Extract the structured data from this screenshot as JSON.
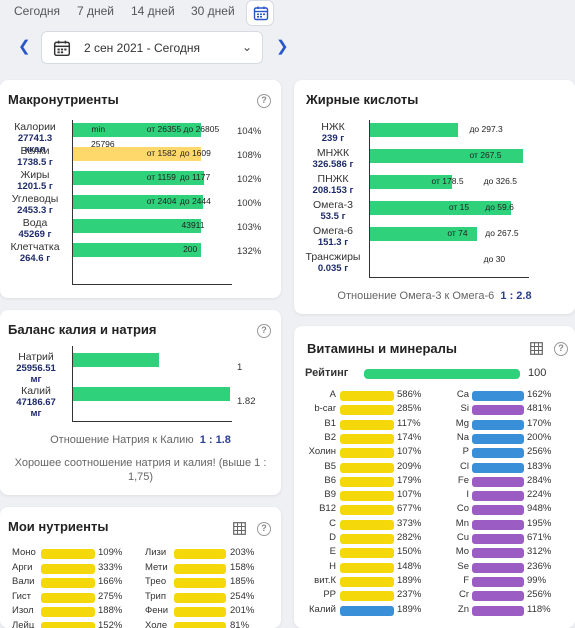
{
  "tabs": [
    {
      "label": "Сегодня"
    },
    {
      "label": "7 дней"
    },
    {
      "label": "14 дней"
    },
    {
      "label": "30 дней"
    }
  ],
  "date_range": "2 сен 2021 - Сегодня",
  "colors": {
    "green": "#2fd17b",
    "yellow": "#f5d80a",
    "blue": "#3a8fd9",
    "purple": "#9b5cc4",
    "light_yellow": "#ffd86b"
  },
  "macro": {
    "title": "Макронутриенты",
    "rows": [
      {
        "name": "Калории",
        "amount": "27741.3",
        "unit": "ккал",
        "fill": 0.81,
        "color": "green",
        "inner": [
          {
            "text": "min",
            "pos": 0.18
          },
          {
            "text": "от 26355 до 26805",
            "pos": 0.53
          }
        ],
        "below": "25796",
        "pct": "104%"
      },
      {
        "name": "Белки",
        "amount": "1738.5 г",
        "unit": "",
        "fill": 0.81,
        "color": "yellow",
        "inner": [
          {
            "text": "от 1582",
            "pos": 0.53
          },
          {
            "text": "до 1609",
            "pos": 0.74
          }
        ],
        "below": "",
        "pct": "108%"
      },
      {
        "name": "Жиры",
        "amount": "1201.5 г",
        "unit": "",
        "fill": 0.83,
        "color": "green",
        "inner": [
          {
            "text": "от 1159",
            "pos": 0.53
          },
          {
            "text": "до 1177",
            "pos": 0.74
          }
        ],
        "below": "",
        "pct": "102%"
      },
      {
        "name": "Углеводы",
        "amount": "2453.3 г",
        "unit": "",
        "fill": 0.82,
        "color": "green",
        "inner": [
          {
            "text": "от 2404",
            "pos": 0.53
          },
          {
            "text": "до 2444",
            "pos": 0.74
          }
        ],
        "below": "",
        "pct": "100%"
      },
      {
        "name": "Вода",
        "amount": "45269 г",
        "unit": "",
        "fill": 0.81,
        "color": "green",
        "inner": [
          {
            "text": "43911",
            "pos": 0.75
          }
        ],
        "below": "",
        "pct": "103%"
      },
      {
        "name": "Клетчатка",
        "amount": "264.6 г",
        "unit": "",
        "fill": 0.81,
        "color": "green",
        "inner": [
          {
            "text": "200",
            "pos": 0.76
          }
        ],
        "below": "",
        "pct": "132%"
      }
    ]
  },
  "fatty": {
    "title": "Жирные кислоты",
    "rows": [
      {
        "name": "НЖК",
        "amount": "239 г",
        "fill": 0.56,
        "inner": [
          {
            "text": "до 297.3",
            "pos": 0.68
          }
        ]
      },
      {
        "name": "МНЖК",
        "amount": "326.586 г",
        "fill": 0.97,
        "inner": [
          {
            "text": "от 267.5",
            "pos": 0.68
          }
        ]
      },
      {
        "name": "ПНЖК",
        "amount": "208.153 г",
        "fill": 0.52,
        "inner": [
          {
            "text": "от 178.5",
            "pos": 0.44
          },
          {
            "text": "до 326.5",
            "pos": 0.77
          }
        ]
      },
      {
        "name": "Омега-3",
        "amount": "53.5 г",
        "fill": 0.89,
        "inner": [
          {
            "text": "от 15",
            "pos": 0.55
          },
          {
            "text": "до 59.6",
            "pos": 0.78
          }
        ]
      },
      {
        "name": "Омега-6",
        "amount": "151.3 г",
        "fill": 0.68,
        "inner": [
          {
            "text": "от 74",
            "pos": 0.54
          },
          {
            "text": "до 267.5",
            "pos": 0.78
          }
        ]
      },
      {
        "name": "Трансжиры",
        "amount": "0.035 г",
        "fill": 0.0,
        "inner": [
          {
            "text": "до 30",
            "pos": 0.77
          }
        ]
      }
    ],
    "ratio_label": "Отношение Омега-3 к Омега-6",
    "ratio_value": "1 : 2.8"
  },
  "balance": {
    "title": "Баланс калия и натрия",
    "rows": [
      {
        "name": "Натрий",
        "amount": "25956.51",
        "unit": "мг",
        "fill": 0.55,
        "value": "1"
      },
      {
        "name": "Калий",
        "amount": "47186.67",
        "unit": "мг",
        "fill": 1.0,
        "value": "1.82"
      }
    ],
    "ratio_label": "Отношение Натрия к Калию",
    "ratio_value": "1 : 1.8",
    "note": "Хорошее соотношение натрия и калия! (выше 1 : 1,75)"
  },
  "vitamins": {
    "title": "Витамины и минералы",
    "rating_label": "Рейтинг",
    "rating_value": "100",
    "rating_fill": 1.0,
    "left": [
      {
        "name": "A",
        "value": "586%",
        "color": "yellow"
      },
      {
        "name": "b-car",
        "value": "285%",
        "color": "yellow"
      },
      {
        "name": "B1",
        "value": "117%",
        "color": "yellow"
      },
      {
        "name": "B2",
        "value": "174%",
        "color": "yellow"
      },
      {
        "name": "Холин",
        "value": "107%",
        "color": "yellow"
      },
      {
        "name": "B5",
        "value": "209%",
        "color": "yellow"
      },
      {
        "name": "B6",
        "value": "179%",
        "color": "yellow"
      },
      {
        "name": "B9",
        "value": "107%",
        "color": "yellow"
      },
      {
        "name": "B12",
        "value": "677%",
        "color": "yellow"
      },
      {
        "name": "C",
        "value": "373%",
        "color": "yellow"
      },
      {
        "name": "D",
        "value": "282%",
        "color": "yellow"
      },
      {
        "name": "E",
        "value": "150%",
        "color": "yellow"
      },
      {
        "name": "H",
        "value": "148%",
        "color": "yellow"
      },
      {
        "name": "вит.К",
        "value": "189%",
        "color": "yellow"
      },
      {
        "name": "PP",
        "value": "237%",
        "color": "yellow"
      },
      {
        "name": "Калий",
        "value": "189%",
        "color": "blue"
      }
    ],
    "right": [
      {
        "name": "Ca",
        "value": "162%",
        "color": "blue"
      },
      {
        "name": "Si",
        "value": "481%",
        "color": "purple"
      },
      {
        "name": "Mg",
        "value": "170%",
        "color": "blue"
      },
      {
        "name": "Na",
        "value": "200%",
        "color": "blue"
      },
      {
        "name": "P",
        "value": "256%",
        "color": "blue"
      },
      {
        "name": "Cl",
        "value": "183%",
        "color": "blue"
      },
      {
        "name": "Fe",
        "value": "284%",
        "color": "purple"
      },
      {
        "name": "I",
        "value": "224%",
        "color": "purple"
      },
      {
        "name": "Co",
        "value": "948%",
        "color": "purple"
      },
      {
        "name": "Mn",
        "value": "195%",
        "color": "purple"
      },
      {
        "name": "Cu",
        "value": "671%",
        "color": "purple"
      },
      {
        "name": "Mo",
        "value": "312%",
        "color": "purple"
      },
      {
        "name": "Se",
        "value": "236%",
        "color": "purple"
      },
      {
        "name": "F",
        "value": "99%",
        "color": "purple"
      },
      {
        "name": "Cr",
        "value": "256%",
        "color": "purple"
      },
      {
        "name": "Zn",
        "value": "118%",
        "color": "purple"
      }
    ]
  },
  "mynutr": {
    "title": "Мои нутриенты",
    "left": [
      {
        "name": "Моно",
        "value": "109%"
      },
      {
        "name": "Арги",
        "value": "333%"
      },
      {
        "name": "Вали",
        "value": "166%"
      },
      {
        "name": "Гист",
        "value": "275%"
      },
      {
        "name": "Изол",
        "value": "188%"
      },
      {
        "name": "Лейц",
        "value": "152%"
      }
    ],
    "right": [
      {
        "name": "Лизи",
        "value": "203%"
      },
      {
        "name": "Мети",
        "value": "158%"
      },
      {
        "name": "Трео",
        "value": "185%"
      },
      {
        "name": "Трип",
        "value": "254%"
      },
      {
        "name": "Фени",
        "value": "201%"
      },
      {
        "name": "Холе",
        "value": "81%"
      }
    ]
  }
}
